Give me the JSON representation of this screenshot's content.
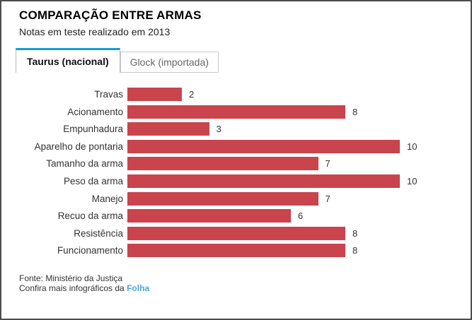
{
  "header": {
    "title": "COMPARAÇÃO ENTRE ARMAS",
    "subtitle": "Notas em teste realizado em 2013"
  },
  "tabs": [
    {
      "label": "Taurus (nacional)",
      "active": true
    },
    {
      "label": "Glock (importada)",
      "active": false
    }
  ],
  "chart_data": {
    "type": "bar",
    "orientation": "horizontal",
    "series_name": "Taurus (nacional)",
    "categories": [
      "Travas",
      "Acionamento",
      "Empunhadura",
      "Aparelho de pontaria",
      "Tamanho da arma",
      "Peso da arma",
      "Manejo",
      "Recuo da arma",
      "Resistência",
      "Funcionamento"
    ],
    "values": [
      2,
      8,
      3,
      10,
      7,
      10,
      7,
      6,
      8,
      8
    ],
    "xlim": [
      0,
      10
    ],
    "grid": false,
    "value_labels": true,
    "bar_color": "#c9444c"
  },
  "footer": {
    "source": "Fonte: Ministério da Justiça",
    "more_prefix": "Confira mais infográficos da ",
    "link_label": "Folha"
  },
  "colors": {
    "bar": "#c9444c",
    "tab_accent": "#1899d6",
    "link": "#4fa6d8",
    "frame_border": "#4d4d4d"
  }
}
